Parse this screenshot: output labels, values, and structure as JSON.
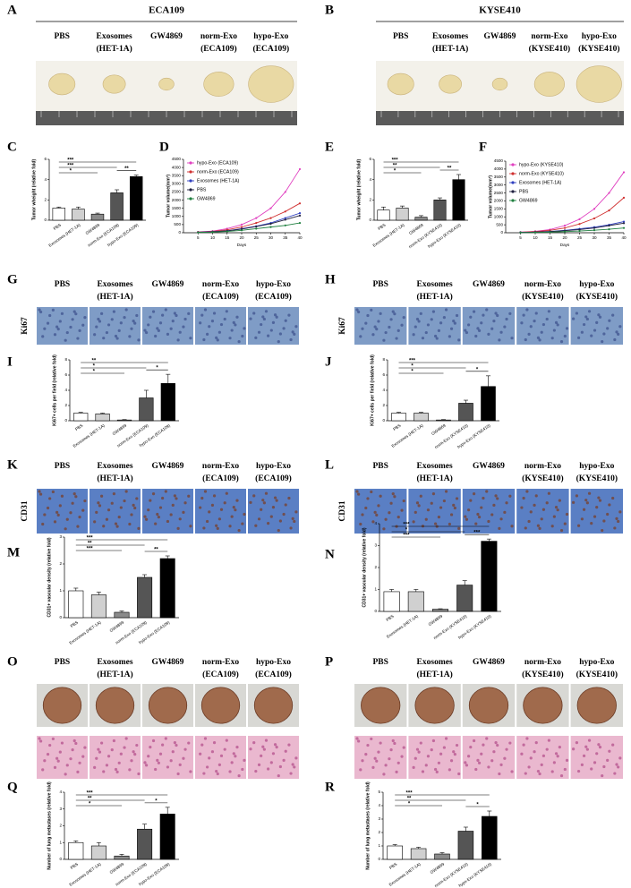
{
  "photo_panels": [
    {
      "panel": "A",
      "title": "ECA109",
      "columns": [
        [
          "PBS"
        ],
        [
          "Exosomes",
          "(HET-1A)"
        ],
        [
          "GW4869"
        ],
        [
          "norm-Exo",
          "(ECA109)"
        ],
        [
          "hypo-Exo",
          "(ECA109)"
        ]
      ]
    },
    {
      "panel": "B",
      "title": "KYSE410",
      "columns": [
        [
          "PBS"
        ],
        [
          "Exosomes",
          "(HET-1A)"
        ],
        [
          "GW4869"
        ],
        [
          "norm-Exo",
          "(KYSE410)"
        ],
        [
          "hypo-Exo",
          "(KYSE410)"
        ]
      ]
    },
    {
      "panel": "G",
      "row_label": "Ki67",
      "columns": [
        [
          "PBS"
        ],
        [
          "Exosomes",
          "(HET-1A)"
        ],
        [
          "GW4869"
        ],
        [
          "norm-Exo",
          "(ECA109)"
        ],
        [
          "hypo-Exo",
          "(ECA109)"
        ]
      ]
    },
    {
      "panel": "H",
      "row_label": "Ki67",
      "columns": [
        [
          "PBS"
        ],
        [
          "Exosomes",
          "(HET-1A)"
        ],
        [
          "GW4869"
        ],
        [
          "norm-Exo",
          "(KYSE410)"
        ],
        [
          "hypo-Exo",
          "(KYSE410)"
        ]
      ]
    },
    {
      "panel": "K",
      "row_label": "CD31",
      "columns": [
        [
          "PBS"
        ],
        [
          "Exosomes",
          "(HET-1A)"
        ],
        [
          "GW4869"
        ],
        [
          "norm-Exo",
          "(ECA109)"
        ],
        [
          "hypo-Exo",
          "(ECA109)"
        ]
      ]
    },
    {
      "panel": "L",
      "row_label": "CD31",
      "columns": [
        [
          "PBS"
        ],
        [
          "Exosomes",
          "(HET-1A)"
        ],
        [
          "GW4869"
        ],
        [
          "norm-Exo",
          "(KYSE410)"
        ],
        [
          "hypo-Exo",
          "(KYSE410)"
        ]
      ]
    },
    {
      "panel": "O",
      "columns": [
        [
          "PBS"
        ],
        [
          "Exosomes",
          "(HET-1A)"
        ],
        [
          "GW4869"
        ],
        [
          "norm-Exo",
          "(ECA109)"
        ],
        [
          "hypo-Exo",
          "(ECA109)"
        ]
      ]
    },
    {
      "panel": "P",
      "columns": [
        [
          "PBS"
        ],
        [
          "Exosomes",
          "(HET-1A)"
        ],
        [
          "GW4869"
        ],
        [
          "norm-Exo",
          "(KYSE410)"
        ],
        [
          "hypo-Exo",
          "(KYSE410)"
        ]
      ]
    }
  ],
  "chart_data": [
    {
      "type": "bar",
      "panel": "C",
      "ylabel": "Tumor wheight (relative fold)",
      "categories": [
        "PBS",
        "Exosomes (HET-1A)",
        "GW4869",
        "norm-Exo (ECA109)",
        "hypo-Exo (ECA109)"
      ],
      "values": [
        1.2,
        1.1,
        0.6,
        2.7,
        4.3
      ],
      "errors": [
        0.1,
        0.2,
        0.1,
        0.3,
        0.15
      ],
      "colors": [
        "#ffffff",
        "#d0d0d0",
        "#8a8a8a",
        "#555555",
        "#000000"
      ],
      "ylim": [
        0,
        6
      ],
      "yticks": [
        0,
        2,
        4,
        6
      ],
      "significance": [
        {
          "label": "***",
          "between": [
            0,
            4
          ]
        },
        {
          "label": "***",
          "between": [
            0,
            3
          ]
        },
        {
          "label": "*",
          "between": [
            0,
            2
          ]
        },
        {
          "label": "**",
          "between": [
            3,
            4
          ]
        }
      ]
    },
    {
      "type": "line",
      "panel": "D",
      "xlabel": "Days",
      "ylabel": "Tumor volume(mm³)",
      "legend": "upper left",
      "x": [
        5,
        10,
        15,
        20,
        25,
        30,
        35,
        40
      ],
      "xlim": [
        0,
        40
      ],
      "xticks": [
        5,
        10,
        15,
        20,
        25,
        30,
        35,
        40
      ],
      "ylim": [
        0,
        4500
      ],
      "yticks": [
        0,
        500,
        1000,
        1500,
        2000,
        2500,
        3000,
        3500,
        4000,
        4500
      ],
      "series": [
        {
          "name": "hypo-Exo (ECA109)",
          "color": "#e040c0",
          "values": [
            50,
            100,
            250,
            500,
            900,
            1500,
            2500,
            3900
          ]
        },
        {
          "name": "norm-Exo (ECA109)",
          "color": "#d03030",
          "values": [
            40,
            80,
            180,
            350,
            600,
            900,
            1300,
            1800
          ]
        },
        {
          "name": "Exosomes (HET-1A)",
          "color": "#3040c0",
          "values": [
            30,
            60,
            120,
            250,
            400,
            600,
            900,
            1200
          ]
        },
        {
          "name": "PBS",
          "color": "#202040",
          "values": [
            30,
            60,
            110,
            220,
            380,
            550,
            800,
            1050
          ]
        },
        {
          "name": "GW4869",
          "color": "#208040",
          "values": [
            20,
            40,
            80,
            150,
            250,
            350,
            450,
            600
          ]
        }
      ]
    },
    {
      "type": "bar",
      "panel": "E",
      "ylabel": "Tumor wheight (relative fold)",
      "categories": [
        "PBS",
        "Exosomes (HET-1A)",
        "GW4869",
        "norm-Exo (KYSE410)",
        "hypo-Exo (KYSE410)"
      ],
      "values": [
        1.0,
        1.2,
        0.3,
        2.0,
        4.0
      ],
      "errors": [
        0.3,
        0.2,
        0.15,
        0.2,
        0.5
      ],
      "colors": [
        "#ffffff",
        "#d0d0d0",
        "#8a8a8a",
        "#555555",
        "#000000"
      ],
      "ylim": [
        0,
        6
      ],
      "yticks": [
        0,
        2,
        4,
        6
      ],
      "significance": [
        {
          "label": "***",
          "between": [
            0,
            4
          ]
        },
        {
          "label": "**",
          "between": [
            0,
            3
          ]
        },
        {
          "label": "*",
          "between": [
            0,
            2
          ]
        },
        {
          "label": "**",
          "between": [
            3,
            4
          ]
        }
      ]
    },
    {
      "type": "line",
      "panel": "F",
      "xlabel": "Days",
      "ylabel": "Tumor volume(mm³)",
      "legend": "upper left",
      "x": [
        5,
        10,
        15,
        20,
        25,
        30,
        35,
        40
      ],
      "xlim": [
        0,
        40
      ],
      "xticks": [
        5,
        10,
        15,
        20,
        25,
        30,
        35,
        40
      ],
      "ylim": [
        0,
        4500
      ],
      "yticks": [
        0,
        500,
        1000,
        1500,
        2000,
        2500,
        3000,
        3500,
        4000,
        4500
      ],
      "series": [
        {
          "name": "hypo-Exo (KYSE410)",
          "color": "#e040c0",
          "values": [
            40,
            90,
            200,
            450,
            850,
            1500,
            2500,
            3800
          ]
        },
        {
          "name": "norm-Exo (KYSE410)",
          "color": "#d03030",
          "values": [
            30,
            70,
            150,
            300,
            550,
            900,
            1400,
            2200
          ]
        },
        {
          "name": "Exosomes (HET-1A)",
          "color": "#3040c0",
          "values": [
            20,
            40,
            80,
            150,
            250,
            350,
            500,
            700
          ]
        },
        {
          "name": "PBS",
          "color": "#202040",
          "values": [
            20,
            40,
            70,
            130,
            200,
            300,
            450,
            600
          ]
        },
        {
          "name": "GW4869",
          "color": "#208040",
          "values": [
            10,
            20,
            40,
            70,
            110,
            160,
            220,
            300
          ]
        }
      ]
    },
    {
      "type": "bar",
      "panel": "I",
      "ylabel": "Ki67+ cells per field (relative fold)",
      "categories": [
        "PBS",
        "Exosomes (HET-1A)",
        "GW4869",
        "norm-Exo (ECA109)",
        "hypo-Exo (ECA109)"
      ],
      "values": [
        1.0,
        0.9,
        0.1,
        3.0,
        4.9
      ],
      "errors": [
        0.1,
        0.1,
        0.05,
        1.0,
        1.2
      ],
      "colors": [
        "#ffffff",
        "#d0d0d0",
        "#8a8a8a",
        "#555555",
        "#000000"
      ],
      "ylim": [
        0,
        8
      ],
      "yticks": [
        0,
        2,
        4,
        6,
        8
      ],
      "significance": [
        {
          "label": "**",
          "between": [
            0,
            4
          ]
        },
        {
          "label": "*",
          "between": [
            0,
            3
          ]
        },
        {
          "label": "*",
          "between": [
            0,
            2
          ]
        },
        {
          "label": "*",
          "between": [
            3,
            4
          ]
        }
      ]
    },
    {
      "type": "bar",
      "panel": "J",
      "ylabel": "Ki67+ cells per field (relative fold)",
      "categories": [
        "PBS",
        "Exosomes (HET-1A)",
        "GW4869",
        "norm-Exo (KYSE410)",
        "hypo-Exo (KYSE410)"
      ],
      "values": [
        1.0,
        1.0,
        0.1,
        2.3,
        4.5
      ],
      "errors": [
        0.1,
        0.1,
        0.05,
        0.4,
        1.4
      ],
      "colors": [
        "#ffffff",
        "#d0d0d0",
        "#8a8a8a",
        "#555555",
        "#000000"
      ],
      "ylim": [
        0,
        8
      ],
      "yticks": [
        0,
        2,
        4,
        6,
        8
      ],
      "significance": [
        {
          "label": "***",
          "between": [
            0,
            4
          ]
        },
        {
          "label": "*",
          "between": [
            0,
            3
          ]
        },
        {
          "label": "*",
          "between": [
            0,
            2
          ]
        },
        {
          "label": "*",
          "between": [
            3,
            4
          ]
        }
      ]
    },
    {
      "type": "bar",
      "panel": "M",
      "ylabel": "CD31+ vascular density (relative fold)",
      "categories": [
        "PBS",
        "Exosomes (HET-1A)",
        "GW4869",
        "norm-Exo (ECA109)",
        "hypo-Exo (ECA109)"
      ],
      "values": [
        1.0,
        0.85,
        0.2,
        1.5,
        2.2
      ],
      "errors": [
        0.1,
        0.1,
        0.05,
        0.1,
        0.1
      ],
      "colors": [
        "#ffffff",
        "#d0d0d0",
        "#8a8a8a",
        "#555555",
        "#000000"
      ],
      "ylim": [
        0,
        3
      ],
      "yticks": [
        0,
        1,
        2,
        3
      ],
      "significance": [
        {
          "label": "***",
          "between": [
            0,
            4
          ]
        },
        {
          "label": "**",
          "between": [
            0,
            3
          ]
        },
        {
          "label": "***",
          "between": [
            0,
            2
          ]
        },
        {
          "label": "**",
          "between": [
            3,
            4
          ]
        }
      ]
    },
    {
      "type": "bar",
      "panel": "N",
      "ylabel": "CD31+ vascular density (relative fold)",
      "categories": [
        "PBS",
        "Exosomes (HET-1A)",
        "GW4869",
        "norm-Exo (KYSE410)",
        "hypo-Exo (KYSE410)"
      ],
      "values": [
        0.9,
        0.9,
        0.1,
        1.2,
        3.2
      ],
      "errors": [
        0.1,
        0.1,
        0.02,
        0.2,
        0.1
      ],
      "colors": [
        "#ffffff",
        "#d0d0d0",
        "#8a8a8a",
        "#555555",
        "#000000"
      ],
      "ylim": [
        0,
        4
      ],
      "yticks": [
        0,
        1,
        2,
        3,
        4
      ],
      "significance": [
        {
          "label": "***",
          "between": [
            0,
            4
          ]
        },
        {
          "label": "*",
          "between": [
            0,
            3
          ]
        },
        {
          "label": "***",
          "between": [
            0,
            2
          ]
        },
        {
          "label": "***",
          "between": [
            3,
            4
          ]
        }
      ]
    },
    {
      "type": "bar",
      "panel": "Q",
      "ylabel": "Number of lung metastases (relative fold)",
      "categories": [
        "PBS",
        "Exosomes (HET-1A)",
        "GW4869",
        "norm-Exo (ECA109)",
        "hypo-Exo (ECA109)"
      ],
      "values": [
        1.0,
        0.8,
        0.2,
        1.8,
        2.7
      ],
      "errors": [
        0.1,
        0.2,
        0.1,
        0.3,
        0.4
      ],
      "colors": [
        "#ffffff",
        "#d0d0d0",
        "#8a8a8a",
        "#555555",
        "#000000"
      ],
      "ylim": [
        0,
        4
      ],
      "yticks": [
        0,
        1,
        2,
        3,
        4
      ],
      "significance": [
        {
          "label": "***",
          "between": [
            0,
            4
          ]
        },
        {
          "label": "**",
          "between": [
            0,
            3
          ]
        },
        {
          "label": "*",
          "between": [
            0,
            2
          ]
        },
        {
          "label": "*",
          "between": [
            3,
            4
          ]
        }
      ]
    },
    {
      "type": "bar",
      "panel": "R",
      "ylabel": "Number of lung metastases (relative fold)",
      "categories": [
        "PBS",
        "Exosomes (HET-1A)",
        "GW4869",
        "norm-Exo (KYSE410)",
        "hypo-Exo (KYSE410)"
      ],
      "values": [
        1.0,
        0.8,
        0.4,
        2.1,
        3.2
      ],
      "errors": [
        0.1,
        0.1,
        0.1,
        0.3,
        0.4
      ],
      "colors": [
        "#ffffff",
        "#d0d0d0",
        "#8a8a8a",
        "#555555",
        "#000000"
      ],
      "ylim": [
        0,
        5
      ],
      "yticks": [
        0,
        1,
        2,
        3,
        4,
        5
      ],
      "significance": [
        {
          "label": "***",
          "between": [
            0,
            4
          ]
        },
        {
          "label": "**",
          "between": [
            0,
            3
          ]
        },
        {
          "label": "*",
          "between": [
            0,
            2
          ]
        },
        {
          "label": "*",
          "between": [
            3,
            4
          ]
        }
      ]
    }
  ]
}
